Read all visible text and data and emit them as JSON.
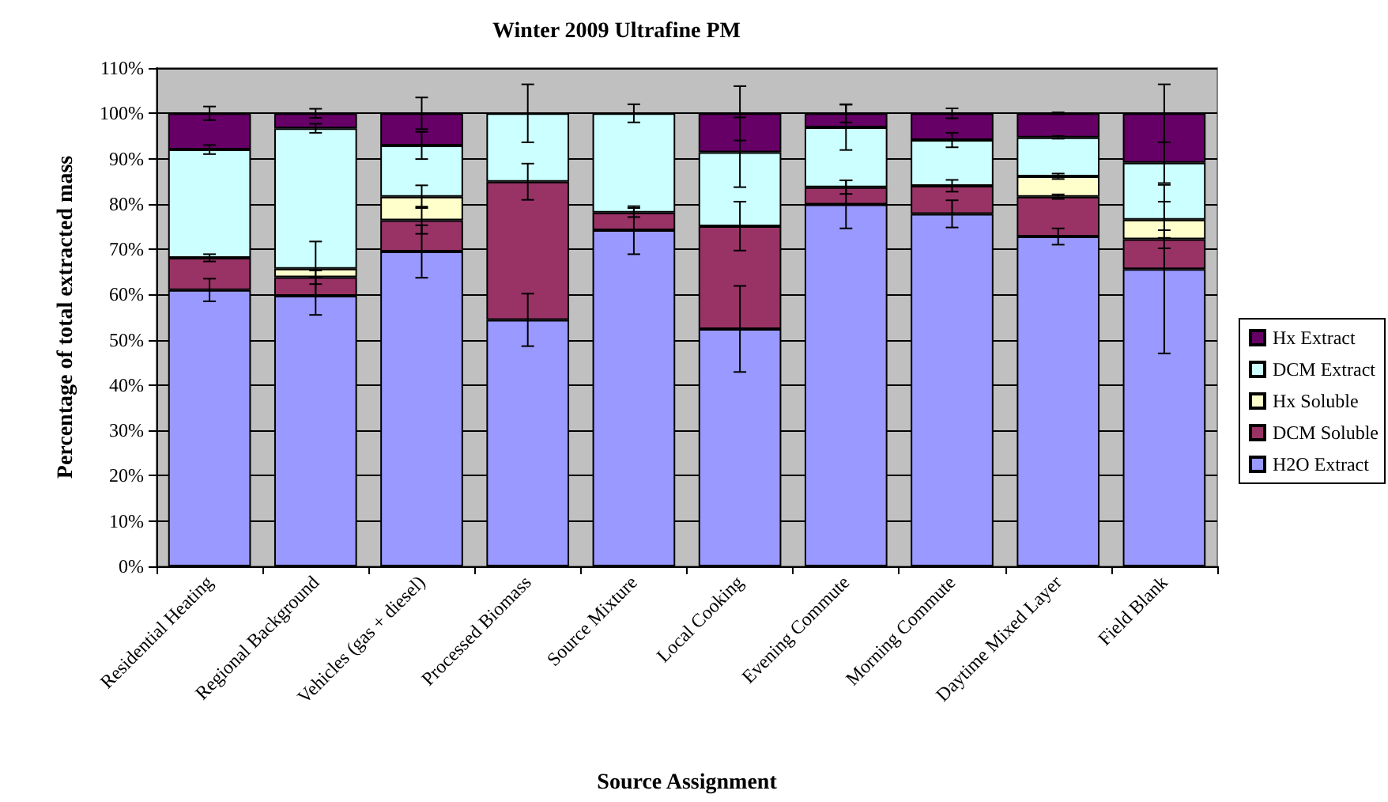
{
  "chart_data": {
    "type": "bar",
    "stacked": true,
    "title": "Winter 2009 Ultrafine PM",
    "xlabel": "Source Assignment",
    "ylabel": "Percentage of total extracted mass",
    "categories": [
      "Residential Heating",
      "Regional Background",
      "Vehicles (gas + diesel)",
      "Processed Biomass",
      "Source Mixture",
      "Local Cooking",
      "Evening Commute",
      "Morning Commute",
      "Daytime Mixed Layer",
      "Field Blank"
    ],
    "series": [
      {
        "name": "H2O Extract",
        "color": "#9999ff",
        "values": [
          61.0,
          59.7,
          69.5,
          54.4,
          74.2,
          52.4,
          79.9,
          77.8,
          72.8,
          65.6
        ],
        "errors": [
          2.5,
          4.2,
          5.8,
          5.8,
          5.3,
          9.5,
          5.3,
          3.0,
          1.8,
          18.6
        ]
      },
      {
        "name": "DCM Soluble",
        "color": "#993366",
        "values": [
          7.1,
          4.1,
          6.9,
          30.5,
          3.9,
          22.7,
          3.8,
          6.2,
          8.8,
          6.6
        ],
        "errors": [
          0.8,
          1.5,
          3.0,
          4.0,
          1.0,
          5.4,
          1.5,
          1.3,
          0.5,
          2.0
        ]
      },
      {
        "name": "Hx Soluble",
        "color": "#ffffcc",
        "values": [
          0,
          1.9,
          5.2,
          0,
          0,
          0,
          0,
          0,
          4.5,
          4.3
        ],
        "errors": [
          null,
          6.0,
          2.5,
          null,
          null,
          null,
          null,
          null,
          0.6,
          4.0
        ]
      },
      {
        "name": "DCM Extract",
        "color": "#ccffff",
        "values": [
          23.9,
          31.0,
          11.3,
          15.1,
          21.9,
          16.3,
          13.2,
          10.1,
          8.6,
          12.6
        ],
        "errors": [
          1.0,
          1.0,
          3.0,
          6.4,
          2.0,
          7.7,
          5.0,
          1.6,
          0.3,
          4.5
        ]
      },
      {
        "name": "Hx Extract",
        "color": "#660066",
        "values": [
          8.0,
          3.3,
          7.1,
          0,
          0,
          8.6,
          3.1,
          5.9,
          5.3,
          10.9
        ],
        "errors": [
          1.5,
          1.0,
          3.5,
          null,
          null,
          6.0,
          2.0,
          1.1,
          0.2,
          6.4
        ]
      }
    ],
    "ylim": [
      0,
      110
    ],
    "yticks": [
      {
        "value": 0,
        "label": "0%"
      },
      {
        "value": 10,
        "label": "10%"
      },
      {
        "value": 20,
        "label": "20%"
      },
      {
        "value": 30,
        "label": "30%"
      },
      {
        "value": 40,
        "label": "40%"
      },
      {
        "value": 50,
        "label": "50%"
      },
      {
        "value": 60,
        "label": "60%"
      },
      {
        "value": 70,
        "label": "70%"
      },
      {
        "value": 80,
        "label": "80%"
      },
      {
        "value": 90,
        "label": "90%"
      },
      {
        "value": 100,
        "label": "100%"
      },
      {
        "value": 110,
        "label": "110%"
      }
    ],
    "grid": "y",
    "legend": "right"
  }
}
